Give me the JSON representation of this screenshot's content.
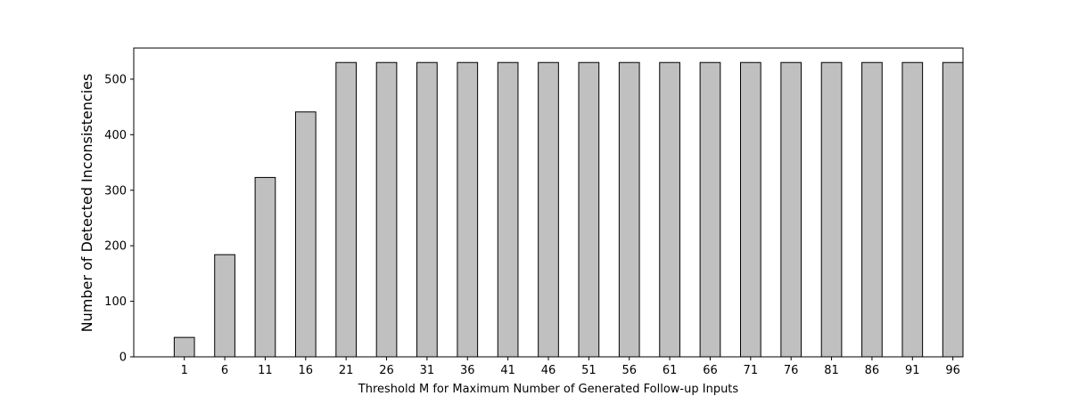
{
  "chart_data": {
    "type": "bar",
    "title": "",
    "xlabel": "Threshold M for Maximum Number of Generated Follow-up Inputs",
    "ylabel": "Number of Detected Inconsistencies",
    "categories": [
      "1",
      "6",
      "11",
      "16",
      "21",
      "26",
      "31",
      "36",
      "41",
      "46",
      "51",
      "56",
      "61",
      "66",
      "71",
      "76",
      "81",
      "86",
      "91",
      "96"
    ],
    "values": [
      35,
      184,
      323,
      441,
      530,
      530,
      530,
      530,
      530,
      530,
      530,
      530,
      530,
      530,
      530,
      530,
      530,
      530,
      530,
      530
    ],
    "ylim": [
      0,
      556
    ],
    "yticks": [
      0,
      100,
      200,
      300,
      400,
      500
    ],
    "grid": false,
    "legend": "none",
    "colors": {
      "bar_fill": "#c0c0c0",
      "bar_edge": "#000000",
      "axis": "#000000"
    }
  }
}
